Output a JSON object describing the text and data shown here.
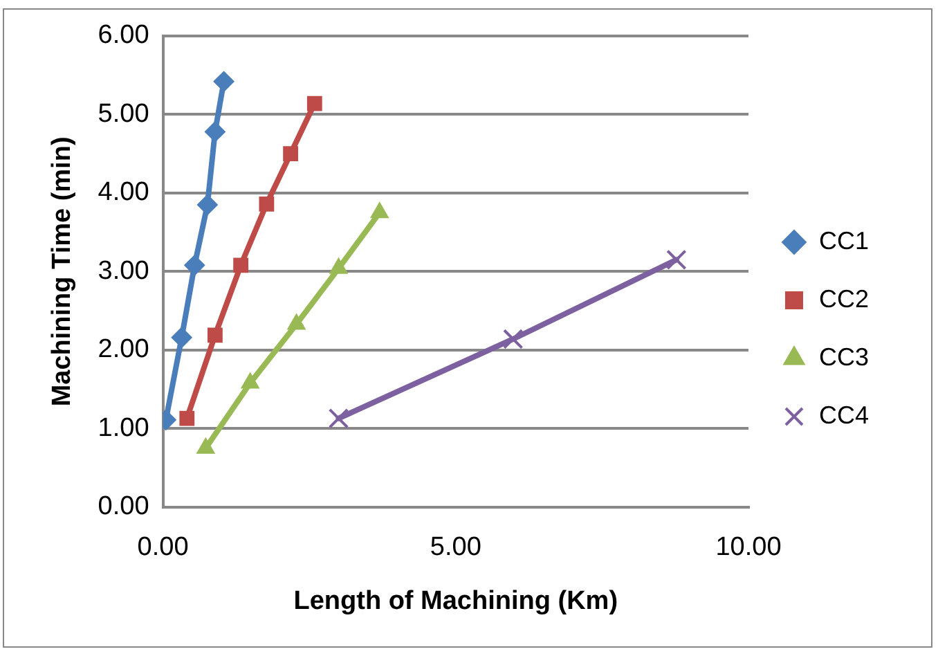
{
  "chart_data": {
    "type": "line",
    "xlabel": "Length of Machining (Km)",
    "ylabel": "Machining Time (min)",
    "xlim": [
      0,
      10
    ],
    "xticks": [
      {
        "value": 0,
        "label": "0.00"
      },
      {
        "value": 5,
        "label": "5.00"
      },
      {
        "value": 10,
        "label": "10.00"
      }
    ],
    "ylim": [
      0,
      6
    ],
    "yticks": [
      {
        "value": 0,
        "label": "0.00"
      },
      {
        "value": 1,
        "label": "1.00"
      },
      {
        "value": 2,
        "label": "2.00"
      },
      {
        "value": 3,
        "label": "3.00"
      },
      {
        "value": 4,
        "label": "4.00"
      },
      {
        "value": 5,
        "label": "5.00"
      },
      {
        "value": 6,
        "label": "6.00"
      }
    ],
    "grid": "y",
    "legend": "right",
    "line_style": "solid",
    "series": [
      {
        "name": "CC1",
        "color": "#4a7ebb",
        "marker": "diamond",
        "x": [
          0.05,
          0.32,
          0.54,
          0.76,
          0.89,
          1.04
        ],
        "values": [
          1.11,
          2.16,
          3.08,
          3.85,
          4.78,
          5.42
        ]
      },
      {
        "name": "CC2",
        "color": "#be4b48",
        "marker": "square",
        "x": [
          0.41,
          0.89,
          1.33,
          1.77,
          2.18,
          2.59
        ],
        "values": [
          1.13,
          2.19,
          3.08,
          3.86,
          4.5,
          5.14
        ]
      },
      {
        "name": "CC3",
        "color": "#98b954",
        "marker": "triangle",
        "x": [
          0.73,
          1.49,
          2.28,
          3.0,
          3.7
        ],
        "values": [
          0.75,
          1.58,
          2.33,
          3.04,
          3.75
        ]
      },
      {
        "name": "CC4",
        "color": "#7d60a0",
        "marker": "cross",
        "x": [
          3.0,
          5.98,
          8.77
        ],
        "values": [
          1.13,
          2.14,
          3.15
        ]
      }
    ]
  }
}
